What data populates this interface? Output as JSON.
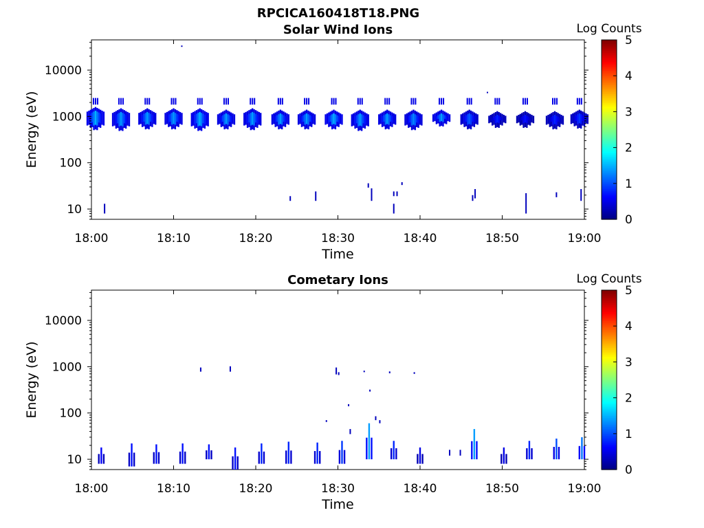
{
  "figure": {
    "title": "RPCICA160418T18.PNG"
  },
  "chart_data": [
    {
      "type": "heatmap",
      "title": "Solar Wind Ions",
      "xlabel": "Time",
      "ylabel": "Energy (eV)",
      "x_ticks": [
        "18:00",
        "18:10",
        "18:20",
        "18:30",
        "18:40",
        "18:50",
        "19:00"
      ],
      "y_ticks": [
        "10",
        "100",
        "1000",
        "10000"
      ],
      "xlim": [
        "18:00",
        "19:00"
      ],
      "ylim": [
        6,
        45000
      ],
      "yscale": "log",
      "colorbar": {
        "label": "Log Counts",
        "range": [
          0,
          5
        ],
        "ticks": [
          "0",
          "1",
          "2",
          "3",
          "4",
          "5"
        ]
      },
      "blobs": [
        {
          "t": 0.5,
          "e_lo": 500,
          "e_hi": 1600,
          "peak": 1.5
        },
        {
          "t": 3.6,
          "e_lo": 480,
          "e_hi": 1500,
          "peak": 1.4
        },
        {
          "t": 6.8,
          "e_lo": 520,
          "e_hi": 1500,
          "peak": 1.4
        },
        {
          "t": 10.0,
          "e_lo": 520,
          "e_hi": 1500,
          "peak": 1.4
        },
        {
          "t": 13.2,
          "e_lo": 480,
          "e_hi": 1500,
          "peak": 1.5
        },
        {
          "t": 16.4,
          "e_lo": 520,
          "e_hi": 1400,
          "peak": 1.4
        },
        {
          "t": 19.6,
          "e_lo": 500,
          "e_hi": 1500,
          "peak": 1.4
        },
        {
          "t": 23.0,
          "e_lo": 520,
          "e_hi": 1400,
          "peak": 1.4
        },
        {
          "t": 26.2,
          "e_lo": 520,
          "e_hi": 1400,
          "peak": 1.4
        },
        {
          "t": 29.5,
          "e_lo": 520,
          "e_hi": 1400,
          "peak": 1.5
        },
        {
          "t": 32.7,
          "e_lo": 480,
          "e_hi": 1400,
          "peak": 1.4
        },
        {
          "t": 36.0,
          "e_lo": 520,
          "e_hi": 1400,
          "peak": 1.4
        },
        {
          "t": 39.2,
          "e_lo": 500,
          "e_hi": 1400,
          "peak": 1.3
        },
        {
          "t": 42.6,
          "e_lo": 600,
          "e_hi": 1400,
          "peak": 1.4
        },
        {
          "t": 46.0,
          "e_lo": 520,
          "e_hi": 1400,
          "peak": 1.1
        },
        {
          "t": 49.4,
          "e_lo": 560,
          "e_hi": 1300,
          "peak": 0.8
        },
        {
          "t": 52.8,
          "e_lo": 560,
          "e_hi": 1300,
          "peak": 0.7
        },
        {
          "t": 56.4,
          "e_lo": 520,
          "e_hi": 1300,
          "peak": 0.8
        },
        {
          "t": 59.4,
          "e_lo": 540,
          "e_hi": 1400,
          "peak": 0.9
        }
      ],
      "marks": [
        {
          "t": 1.6,
          "e_lo": 8,
          "e_hi": 13,
          "v": 0.3
        },
        {
          "t": 11.0,
          "e_lo": 33000,
          "e_hi": 34000,
          "v": 0.3
        },
        {
          "t": 24.2,
          "e_lo": 15,
          "e_hi": 19,
          "v": 0.3
        },
        {
          "t": 27.3,
          "e_lo": 15,
          "e_hi": 24,
          "v": 0.3
        },
        {
          "t": 33.7,
          "e_lo": 29,
          "e_hi": 36,
          "v": 0.3
        },
        {
          "t": 34.1,
          "e_lo": 15,
          "e_hi": 28,
          "v": 0.3
        },
        {
          "t": 36.8,
          "e_lo": 8,
          "e_hi": 13,
          "v": 0.3
        },
        {
          "t": 36.8,
          "e_lo": 19,
          "e_hi": 24,
          "v": 0.3
        },
        {
          "t": 37.2,
          "e_lo": 19,
          "e_hi": 24,
          "v": 0.3
        },
        {
          "t": 37.8,
          "e_lo": 33,
          "e_hi": 38,
          "v": 0.3
        },
        {
          "t": 46.4,
          "e_lo": 15,
          "e_hi": 20,
          "v": 0.3
        },
        {
          "t": 46.7,
          "e_lo": 17,
          "e_hi": 27,
          "v": 0.3
        },
        {
          "t": 48.2,
          "e_lo": 3200,
          "e_hi": 3400,
          "v": 0.3
        },
        {
          "t": 52.9,
          "e_lo": 8,
          "e_hi": 22,
          "v": 0.3
        },
        {
          "t": 56.6,
          "e_lo": 18,
          "e_hi": 23,
          "v": 0.3
        },
        {
          "t": 59.6,
          "e_lo": 15,
          "e_hi": 27,
          "v": 0.3
        }
      ]
    },
    {
      "type": "heatmap",
      "title": "Cometary Ions",
      "xlabel": "Time",
      "ylabel": "Energy (eV)",
      "x_ticks": [
        "18:00",
        "18:10",
        "18:20",
        "18:30",
        "18:40",
        "18:50",
        "19:00"
      ],
      "y_ticks": [
        "10",
        "100",
        "1000",
        "10000"
      ],
      "xlim": [
        "18:00",
        "19:00"
      ],
      "ylim": [
        6,
        45000
      ],
      "yscale": "log",
      "colorbar": {
        "label": "Log Counts",
        "range": [
          0,
          5
        ],
        "ticks": [
          "0",
          "1",
          "2",
          "3",
          "4",
          "5"
        ]
      },
      "bursts": [
        {
          "t": 1.2,
          "e_lo": 8,
          "e_hi": 18,
          "peak": 0.6
        },
        {
          "t": 4.9,
          "e_lo": 7,
          "e_hi": 22,
          "peak": 0.7
        },
        {
          "t": 7.9,
          "e_lo": 8,
          "e_hi": 21,
          "peak": 0.7
        },
        {
          "t": 11.1,
          "e_lo": 8,
          "e_hi": 22,
          "peak": 0.7
        },
        {
          "t": 14.3,
          "e_lo": 10,
          "e_hi": 21,
          "peak": 0.7
        },
        {
          "t": 17.5,
          "e_lo": 6,
          "e_hi": 18,
          "peak": 0.7
        },
        {
          "t": 20.7,
          "e_lo": 8,
          "e_hi": 22,
          "peak": 0.8
        },
        {
          "t": 24.0,
          "e_lo": 8,
          "e_hi": 24,
          "peak": 0.8
        },
        {
          "t": 27.5,
          "e_lo": 8,
          "e_hi": 23,
          "peak": 0.8
        },
        {
          "t": 30.5,
          "e_lo": 8,
          "e_hi": 25,
          "peak": 0.9
        },
        {
          "t": 33.8,
          "e_lo": 10,
          "e_hi": 60,
          "peak": 1.4
        },
        {
          "t": 36.8,
          "e_lo": 10,
          "e_hi": 25,
          "peak": 0.8
        },
        {
          "t": 40.0,
          "e_lo": 8,
          "e_hi": 18,
          "peak": 0.5
        },
        {
          "t": 46.6,
          "e_lo": 10,
          "e_hi": 45,
          "peak": 1.4
        },
        {
          "t": 50.2,
          "e_lo": 8,
          "e_hi": 18,
          "peak": 0.5
        },
        {
          "t": 53.3,
          "e_lo": 10,
          "e_hi": 25,
          "peak": 0.8
        },
        {
          "t": 56.6,
          "e_lo": 10,
          "e_hi": 28,
          "peak": 1.0
        },
        {
          "t": 59.7,
          "e_lo": 10,
          "e_hi": 30,
          "peak": 1.2
        }
      ],
      "marks": [
        {
          "t": 13.3,
          "e_lo": 780,
          "e_hi": 960,
          "v": 0.3
        },
        {
          "t": 16.9,
          "e_lo": 780,
          "e_hi": 1020,
          "v": 0.3
        },
        {
          "t": 29.8,
          "e_lo": 680,
          "e_hi": 960,
          "v": 0.3
        },
        {
          "t": 30.1,
          "e_lo": 660,
          "e_hi": 760,
          "v": 0.3
        },
        {
          "t": 28.6,
          "e_lo": 64,
          "e_hi": 70,
          "v": 0.3
        },
        {
          "t": 31.3,
          "e_lo": 140,
          "e_hi": 155,
          "v": 0.3
        },
        {
          "t": 33.2,
          "e_lo": 760,
          "e_hi": 820,
          "v": 0.3
        },
        {
          "t": 33.9,
          "e_lo": 290,
          "e_hi": 320,
          "v": 0.3
        },
        {
          "t": 36.3,
          "e_lo": 720,
          "e_hi": 790,
          "v": 0.3
        },
        {
          "t": 39.3,
          "e_lo": 700,
          "e_hi": 760,
          "v": 0.3
        },
        {
          "t": 34.6,
          "e_lo": 70,
          "e_hi": 85,
          "v": 0.3
        },
        {
          "t": 35.1,
          "e_lo": 60,
          "e_hi": 70,
          "v": 0.3
        },
        {
          "t": 31.5,
          "e_lo": 35,
          "e_hi": 45,
          "v": 0.3
        },
        {
          "t": 43.6,
          "e_lo": 12,
          "e_hi": 16,
          "v": 0.3
        },
        {
          "t": 44.9,
          "e_lo": 12,
          "e_hi": 16,
          "v": 0.3
        }
      ]
    }
  ]
}
